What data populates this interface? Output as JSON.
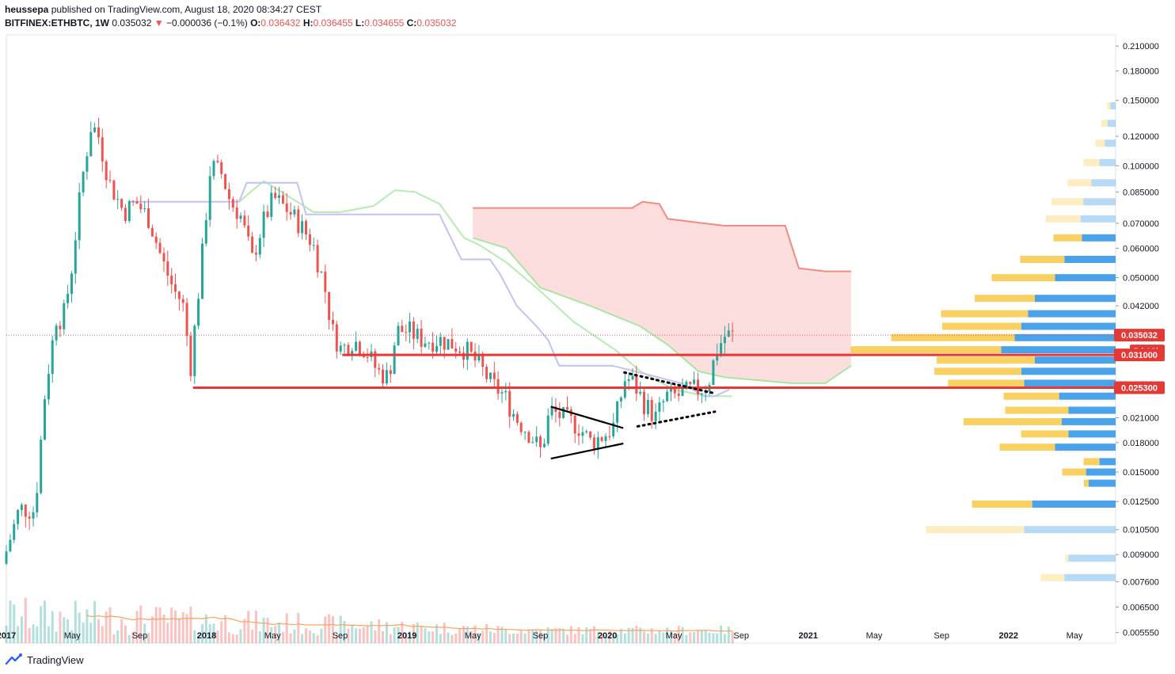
{
  "header": {
    "author": "heussepa",
    "published_text": "published on TradingView.com, August 18, 2020 08:34:27 CEST",
    "symbol": "BITFINEX:ETHBTC, 1W",
    "price": "0.035032",
    "change_arrow": "▼",
    "change": "−0.000036 (−0.1%)",
    "o_label": "O:",
    "o_value": "0.036432",
    "h_label": "H:",
    "h_value": "0.036455",
    "l_label": "L:",
    "l_value": "0.034655",
    "c_label": "C:",
    "c_value": "0.035032"
  },
  "footer": {
    "brand": "TradingView"
  },
  "chart_data": {
    "type": "candlestick",
    "symbol": "BITFINEX:ETHBTC",
    "interval": "1W",
    "scale": "log",
    "ylim": [
      0.0052,
      0.225
    ],
    "x_range": [
      "2017-01-01",
      "2022-07-15"
    ],
    "y_ticks": [
      0.21,
      0.18,
      0.15,
      0.12,
      0.1,
      0.085,
      0.07,
      0.06,
      0.05,
      0.042,
      0.035,
      0.031,
      0.025,
      0.021,
      0.018,
      0.015,
      0.0125,
      0.0105,
      0.009,
      0.0076,
      0.0065,
      0.00555
    ],
    "y_tick_labels": [
      "0.210000",
      "0.180000",
      "0.150000",
      "0.120000",
      "0.100000",
      "0.085000",
      "0.070000",
      "0.060000",
      "0.050000",
      "0.042000",
      "",
      "",
      "",
      "0.021000",
      "0.018000",
      "0.015000",
      "0.012500",
      "0.010500",
      "0.009000",
      "0.007600",
      "0.006500",
      "0.005550"
    ],
    "x_ticks": [
      {
        "date": "2017-01-01",
        "label": "2017"
      },
      {
        "date": "2017-05-01",
        "label": "May"
      },
      {
        "date": "2017-09-01",
        "label": "Sep"
      },
      {
        "date": "2018-01-01",
        "label": "2018"
      },
      {
        "date": "2018-05-01",
        "label": "May"
      },
      {
        "date": "2018-09-01",
        "label": "Sep"
      },
      {
        "date": "2019-01-01",
        "label": "2019"
      },
      {
        "date": "2019-05-01",
        "label": "May"
      },
      {
        "date": "2019-09-01",
        "label": "Sep"
      },
      {
        "date": "2020-01-01",
        "label": "2020"
      },
      {
        "date": "2020-05-01",
        "label": "May"
      },
      {
        "date": "2020-09-01",
        "label": "Sep"
      },
      {
        "date": "2021-01-01",
        "label": "2021"
      },
      {
        "date": "2021-05-01",
        "label": "May"
      },
      {
        "date": "2021-09-01",
        "label": "Sep"
      },
      {
        "date": "2022-01-01",
        "label": "2022"
      },
      {
        "date": "2022-05-01",
        "label": "May"
      }
    ],
    "price_anchors": [
      [
        "2017-01-01",
        0.0085
      ],
      [
        "2017-02-01",
        0.012
      ],
      [
        "2017-03-01",
        0.0118
      ],
      [
        "2017-03-20",
        0.025
      ],
      [
        "2017-04-10",
        0.04
      ],
      [
        "2017-04-20",
        0.038
      ],
      [
        "2017-05-05",
        0.05
      ],
      [
        "2017-05-25",
        0.09
      ],
      [
        "2017-06-12",
        0.13
      ],
      [
        "2017-06-25",
        0.12
      ],
      [
        "2017-07-15",
        0.09
      ],
      [
        "2017-08-10",
        0.075
      ],
      [
        "2017-09-01",
        0.08
      ],
      [
        "2017-09-25",
        0.072
      ],
      [
        "2017-10-20",
        0.055
      ],
      [
        "2017-11-10",
        0.046
      ],
      [
        "2017-11-25",
        0.043
      ],
      [
        "2017-12-10",
        0.029
      ],
      [
        "2017-12-20",
        0.04
      ],
      [
        "2017-12-31",
        0.058
      ],
      [
        "2018-01-15",
        0.1
      ],
      [
        "2018-02-05",
        0.095
      ],
      [
        "2018-02-20",
        0.08
      ],
      [
        "2018-03-10",
        0.074
      ],
      [
        "2018-04-01",
        0.056
      ],
      [
        "2018-04-20",
        0.07
      ],
      [
        "2018-05-10",
        0.082
      ],
      [
        "2018-06-05",
        0.076
      ],
      [
        "2018-06-25",
        0.07
      ],
      [
        "2018-07-20",
        0.062
      ],
      [
        "2018-08-10",
        0.048
      ],
      [
        "2018-08-25",
        0.036
      ],
      [
        "2018-09-10",
        0.032
      ],
      [
        "2018-10-01",
        0.034
      ],
      [
        "2018-10-25",
        0.032
      ],
      [
        "2018-11-15",
        0.028
      ],
      [
        "2018-12-05",
        0.027
      ],
      [
        "2018-12-20",
        0.036
      ],
      [
        "2019-01-10",
        0.036
      ],
      [
        "2019-02-05",
        0.034
      ],
      [
        "2019-03-10",
        0.034
      ],
      [
        "2019-04-05",
        0.033
      ],
      [
        "2019-04-25",
        0.032
      ],
      [
        "2019-05-20",
        0.029
      ],
      [
        "2019-06-10",
        0.026
      ],
      [
        "2019-07-05",
        0.024
      ],
      [
        "2019-07-25",
        0.021
      ],
      [
        "2019-08-20",
        0.019
      ],
      [
        "2019-09-10",
        0.017
      ],
      [
        "2019-09-25",
        0.022
      ],
      [
        "2019-10-20",
        0.021
      ],
      [
        "2019-11-15",
        0.02
      ],
      [
        "2019-12-10",
        0.018
      ],
      [
        "2020-01-05",
        0.019
      ],
      [
        "2020-01-20",
        0.02
      ],
      [
        "2020-02-10",
        0.027
      ],
      [
        "2020-02-25",
        0.026
      ],
      [
        "2020-03-15",
        0.023
      ],
      [
        "2020-04-05",
        0.021
      ],
      [
        "2020-04-25",
        0.024
      ],
      [
        "2020-05-15",
        0.024
      ],
      [
        "2020-06-10",
        0.025
      ],
      [
        "2020-06-25",
        0.025
      ],
      [
        "2020-07-10",
        0.026
      ],
      [
        "2020-07-25",
        0.032
      ],
      [
        "2020-08-10",
        0.035
      ],
      [
        "2020-08-17",
        0.035
      ]
    ],
    "support_lines": [
      {
        "price": 0.031,
        "label": "0.031000",
        "from": "2018-09-05",
        "to": "2022-07-15"
      },
      {
        "price": 0.0253,
        "label": "0.025300",
        "from": "2017-12-07",
        "to": "2022-07-15"
      }
    ],
    "last_price": {
      "value": 0.035032,
      "label": "0.035032",
      "countdown": "5d 18h"
    },
    "ichimoku_cloud": {
      "lead_a": [
        [
          "2019-05-01",
          0.077
        ],
        [
          "2019-12-01",
          0.077
        ],
        [
          "2020-02-15",
          0.077
        ],
        [
          "2020-03-05",
          0.08
        ],
        [
          "2020-04-05",
          0.079
        ],
        [
          "2020-04-20",
          0.072
        ],
        [
          "2020-08-01",
          0.069
        ],
        [
          "2020-11-20",
          0.069
        ],
        [
          "2020-12-15",
          0.053
        ],
        [
          "2021-02-01",
          0.052
        ],
        [
          "2021-03-20",
          0.052
        ]
      ],
      "lead_b": [
        [
          "2019-05-01",
          0.064
        ],
        [
          "2019-07-01",
          0.06
        ],
        [
          "2019-09-01",
          0.047
        ],
        [
          "2019-12-01",
          0.042
        ],
        [
          "2020-03-01",
          0.037
        ],
        [
          "2020-04-20",
          0.033
        ],
        [
          "2020-06-15",
          0.028
        ],
        [
          "2020-08-01",
          0.027
        ],
        [
          "2020-12-01",
          0.026
        ],
        [
          "2021-02-01",
          0.026
        ],
        [
          "2021-03-20",
          0.029
        ]
      ]
    },
    "ichimoku_lines": {
      "tenkan": [
        [
          "2017-08-15",
          0.08
        ],
        [
          "2018-03-01",
          0.08
        ],
        [
          "2018-03-15",
          0.09
        ],
        [
          "2018-06-15",
          0.09
        ],
        [
          "2018-07-01",
          0.074
        ],
        [
          "2019-03-01",
          0.074
        ],
        [
          "2019-04-10",
          0.056
        ],
        [
          "2019-06-01",
          0.056
        ],
        [
          "2019-06-20",
          0.051
        ],
        [
          "2019-07-20",
          0.042
        ],
        [
          "2019-08-25",
          0.037
        ],
        [
          "2019-09-15",
          0.034
        ],
        [
          "2019-10-05",
          0.029
        ],
        [
          "2020-01-10",
          0.029
        ],
        [
          "2020-02-20",
          0.028
        ],
        [
          "2020-05-15",
          0.026
        ],
        [
          "2020-06-25",
          0.024
        ],
        [
          "2020-07-15",
          0.024
        ],
        [
          "2020-08-10",
          0.025
        ]
      ],
      "kijun": [
        [
          "2018-03-01",
          0.08
        ],
        [
          "2018-04-15",
          0.091
        ],
        [
          "2018-06-15",
          0.08
        ],
        [
          "2018-07-15",
          0.075
        ],
        [
          "2018-09-01",
          0.075
        ],
        [
          "2018-11-01",
          0.078
        ],
        [
          "2018-12-10",
          0.086
        ],
        [
          "2019-01-15",
          0.085
        ],
        [
          "2019-03-01",
          0.079
        ],
        [
          "2019-04-15",
          0.064
        ],
        [
          "2019-05-15",
          0.061
        ],
        [
          "2019-07-01",
          0.055
        ],
        [
          "2019-09-01",
          0.046
        ],
        [
          "2019-11-01",
          0.038
        ],
        [
          "2020-01-15",
          0.032
        ],
        [
          "2020-03-01",
          0.028
        ],
        [
          "2020-05-01",
          0.025
        ],
        [
          "2020-07-01",
          0.024
        ],
        [
          "2020-08-15",
          0.024
        ]
      ]
    },
    "trendlines": [
      {
        "style": "solid",
        "from": [
          "2019-09-20",
          0.0225
        ],
        "to": [
          "2020-01-30",
          0.0197
        ]
      },
      {
        "style": "solid",
        "from": [
          "2019-09-20",
          0.0163
        ],
        "to": [
          "2020-01-30",
          0.0179
        ]
      },
      {
        "style": "dotted",
        "from": [
          "2020-02-01",
          0.0278
        ],
        "to": [
          "2020-07-10",
          0.0245
        ]
      },
      {
        "style": "dotted",
        "from": [
          "2020-02-25",
          0.0199
        ],
        "to": [
          "2020-07-15",
          0.0218
        ]
      }
    ],
    "volume_profile": [
      {
        "price": 0.145,
        "yellow": 0.02,
        "blue": 0.04
      },
      {
        "price": 0.13,
        "yellow": 0.04,
        "blue": 0.06
      },
      {
        "price": 0.115,
        "yellow": 0.06,
        "blue": 0.08
      },
      {
        "price": 0.102,
        "yellow": 0.1,
        "blue": 0.12
      },
      {
        "price": 0.09,
        "yellow": 0.15,
        "blue": 0.18
      },
      {
        "price": 0.08,
        "yellow": 0.2,
        "blue": 0.24
      },
      {
        "price": 0.072,
        "yellow": 0.22,
        "blue": 0.26
      },
      {
        "price": 0.064,
        "yellow": 0.18,
        "blue": 0.25
      },
      {
        "price": 0.056,
        "yellow": 0.28,
        "blue": 0.38
      },
      {
        "price": 0.05,
        "yellow": 0.4,
        "blue": 0.45
      },
      {
        "price": 0.044,
        "yellow": 0.38,
        "blue": 0.6
      },
      {
        "price": 0.04,
        "yellow": 0.55,
        "blue": 0.65
      },
      {
        "price": 0.037,
        "yellow": 0.5,
        "blue": 0.7
      },
      {
        "price": 0.0345,
        "yellow": 0.78,
        "blue": 0.75
      },
      {
        "price": 0.032,
        "yellow": 0.95,
        "blue": 0.85
      },
      {
        "price": 0.03,
        "yellow": 0.62,
        "blue": 0.6
      },
      {
        "price": 0.028,
        "yellow": 0.55,
        "blue": 0.7
      },
      {
        "price": 0.026,
        "yellow": 0.48,
        "blue": 0.68
      },
      {
        "price": 0.024,
        "yellow": 0.35,
        "blue": 0.42
      },
      {
        "price": 0.022,
        "yellow": 0.4,
        "blue": 0.35
      },
      {
        "price": 0.0205,
        "yellow": 0.62,
        "blue": 0.4
      },
      {
        "price": 0.019,
        "yellow": 0.3,
        "blue": 0.35
      },
      {
        "price": 0.0175,
        "yellow": 0.35,
        "blue": 0.45
      },
      {
        "price": 0.016,
        "yellow": 0.1,
        "blue": 0.12
      },
      {
        "price": 0.015,
        "yellow": 0.15,
        "blue": 0.22
      },
      {
        "price": 0.014,
        "yellow": 0.03,
        "blue": 0.2
      },
      {
        "price": 0.0123,
        "yellow": 0.38,
        "blue": 0.62
      },
      {
        "price": 0.0105,
        "yellow": 0.62,
        "blue": 0.68
      },
      {
        "price": 0.0088,
        "yellow": 0.02,
        "blue": 0.35
      },
      {
        "price": 0.0078,
        "yellow": 0.15,
        "blue": 0.38
      }
    ],
    "colors": {
      "up": "#26a69a",
      "down": "#ef5350",
      "support": "#e53935",
      "cloud_fill": "#f9b6b6",
      "lead_a": "#f28b82",
      "lead_b": "#a8e6a1",
      "tenkan": "#c2c2f5",
      "kijun": "#b5ecb0",
      "vol_ma": "#f7a35c",
      "vp_yellow": "#f9d163",
      "vp_blue": "#4aa3ea"
    }
  }
}
